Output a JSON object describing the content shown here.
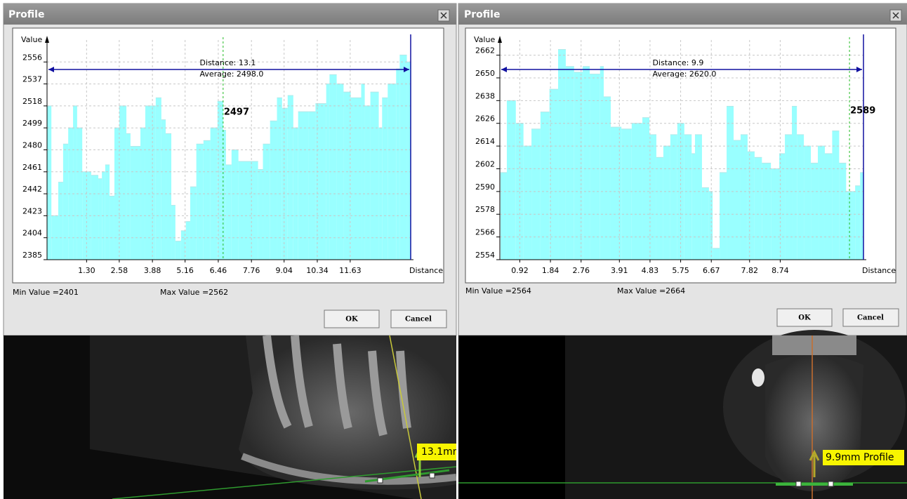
{
  "dialogs": [
    {
      "title": "Profile",
      "min_label": "Min Value =2401",
      "max_label": "Max Value =2562",
      "ok": "OK",
      "cancel": "Cancel",
      "image_label": "13.1mn"
    },
    {
      "title": "Profile",
      "min_label": "Min Value =2564",
      "max_label": "Max Value =2664",
      "ok": "OK",
      "cancel": "Cancel",
      "image_label": "9.9mm Profile"
    }
  ],
  "chart_data": [
    {
      "type": "step-area",
      "color": "#99ffff",
      "y_label": "Value",
      "x_label": "Distance",
      "grid": true,
      "annotations": [
        "Distance: 13.1",
        "Average: 2498.0"
      ],
      "cursor": {
        "x": 6.65,
        "value": 2497
      },
      "xlim": [
        -0.25,
        14.0
      ],
      "ylim": [
        2385,
        2575
      ],
      "xticks": [
        {
          "value": 1.3,
          "label": "1.30"
        },
        2.58,
        3.88,
        5.16,
        6.46,
        7.76,
        9.04,
        10.34,
        11.63
      ],
      "yticks": [
        2385,
        2404,
        2423,
        2442,
        2461,
        2480,
        2499,
        2518,
        2537,
        2556
      ],
      "x": [
        -0.25,
        -0.08,
        0.19,
        0.38,
        0.58,
        0.77,
        0.93,
        1.13,
        1.48,
        1.76,
        1.9,
        2.03,
        2.2,
        2.39,
        2.58,
        2.86,
        3.02,
        3.41,
        3.6,
        4.01,
        4.23,
        4.4,
        4.62,
        4.78,
        5.0,
        5.19,
        5.36,
        5.6,
        5.88,
        6.15,
        6.43,
        6.65,
        6.76,
        6.98,
        7.25,
        8.02,
        8.21,
        8.49,
        8.76,
        8.96,
        9.18,
        9.4,
        9.59,
        10.0,
        10.27,
        10.69,
        10.82,
        11.1,
        11.37,
        11.65,
        12.06,
        12.2,
        12.42,
        12.75,
        12.88,
        13.1,
        13.43,
        13.57,
        13.85
      ],
      "values": [
        2518,
        2423,
        2452,
        2485,
        2499,
        2518,
        2499,
        2461,
        2458,
        2455,
        2461,
        2467,
        2440,
        2499,
        2518,
        2494,
        2483,
        2499,
        2518,
        2525,
        2506,
        2494,
        2432,
        2401,
        2410,
        2418,
        2448,
        2485,
        2488,
        2499,
        2522,
        2497,
        2467,
        2480,
        2470,
        2463,
        2485,
        2505,
        2525,
        2516,
        2527,
        2499,
        2513,
        2513,
        2520,
        2537,
        2545,
        2537,
        2530,
        2525,
        2537,
        2518,
        2530,
        2499,
        2525,
        2537,
        2550,
        2562,
        2556
      ]
    },
    {
      "type": "step-area",
      "color": "#99ffff",
      "y_label": "Value",
      "x_label": "Distance",
      "grid": true,
      "annotations": [
        "Distance:  9.9",
        "Average: 2620.0"
      ],
      "cursor": {
        "x": 10.82,
        "value": 2589
      },
      "xlim": [
        0.32,
        11.24
      ],
      "ylim": [
        2554,
        2670
      ],
      "xticks": [
        0.92,
        1.84,
        2.76,
        3.91,
        4.83,
        5.75,
        6.67,
        7.82,
        8.74
      ],
      "yticks": [
        2554,
        2566,
        2578,
        2590,
        2602,
        2614,
        2626,
        2638,
        2650,
        2662
      ],
      "x": [
        0.34,
        0.53,
        0.8,
        1.03,
        1.27,
        1.54,
        1.81,
        2.07,
        2.3,
        2.55,
        2.81,
        3.02,
        3.33,
        3.44,
        3.65,
        3.97,
        4.28,
        4.6,
        4.81,
        5.02,
        5.23,
        5.44,
        5.65,
        5.86,
        6.08,
        6.18,
        6.39,
        6.6,
        6.71,
        6.92,
        7.13,
        7.34,
        7.55,
        7.76,
        7.97,
        8.19,
        8.46,
        8.71,
        8.88,
        9.09,
        9.24,
        9.45,
        9.66,
        9.87,
        10.08,
        10.3,
        10.51,
        10.72,
        10.99,
        11.14
      ],
      "values": [
        2600,
        2638,
        2626,
        2614,
        2623,
        2632,
        2644,
        2665,
        2656,
        2653,
        2656,
        2652,
        2656,
        2640,
        2624,
        2623,
        2626,
        2629,
        2620,
        2608,
        2614,
        2620,
        2626,
        2620,
        2610,
        2620,
        2592,
        2590,
        2560,
        2600,
        2635,
        2617,
        2620,
        2611,
        2608,
        2605,
        2602,
        2610,
        2620,
        2635,
        2620,
        2614,
        2605,
        2614,
        2610,
        2622,
        2605,
        2590,
        2593,
        2600
      ]
    }
  ]
}
